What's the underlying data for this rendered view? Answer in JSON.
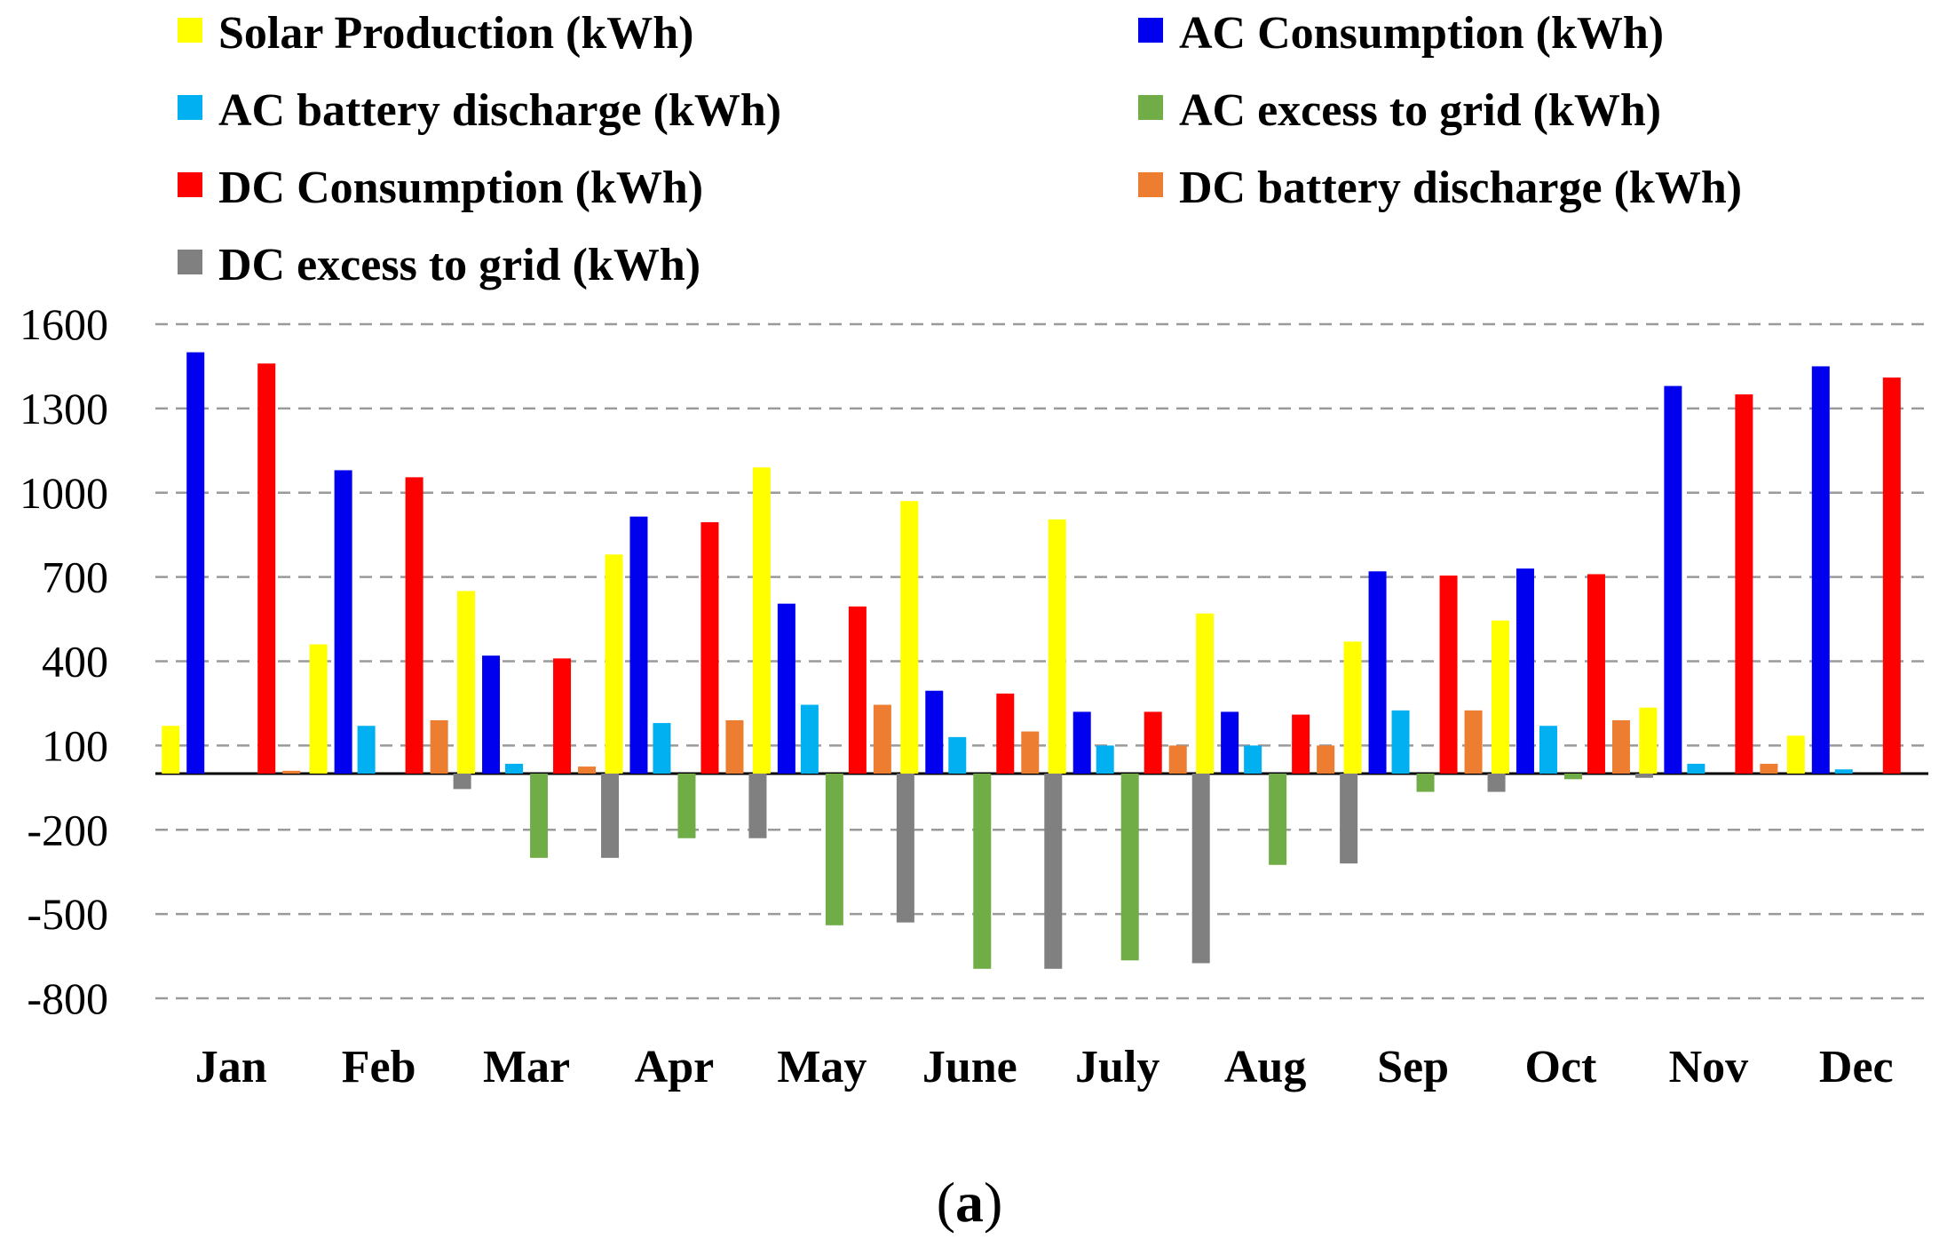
{
  "chart_data": {
    "type": "bar",
    "title": "",
    "xlabel": "",
    "ylabel": "",
    "caption": "(a)",
    "caption_open": "(",
    "caption_letter": "a",
    "caption_close": ")",
    "ylim": [
      -800,
      1600
    ],
    "yticks": [
      1600,
      1300,
      1000,
      700,
      400,
      100,
      -200,
      -500,
      -800
    ],
    "ytick_labels": [
      "1600",
      "1300",
      "1000",
      "700",
      "400",
      "100",
      "-200",
      "-500",
      "-800"
    ],
    "grid": true,
    "legend_position": "top",
    "categories": [
      "Jan",
      "Feb",
      "Mar",
      "Apr",
      "May",
      "June",
      "July",
      "Aug",
      "Sep",
      "Oct",
      "Nov",
      "Dec"
    ],
    "series": [
      {
        "name": "Solar Production (kWh)",
        "color": "#FFFF00",
        "values": [
          170,
          460,
          650,
          780,
          1090,
          970,
          905,
          570,
          470,
          545,
          235,
          135
        ]
      },
      {
        "name": "AC Consumption (kWh)",
        "color": "#0000EE",
        "values": [
          1500,
          1080,
          420,
          915,
          605,
          295,
          220,
          220,
          720,
          730,
          1380,
          1450
        ]
      },
      {
        "name": "AC battery discharge (kWh)",
        "color": "#00B0F0",
        "values": [
          0,
          170,
          35,
          180,
          245,
          130,
          100,
          100,
          225,
          170,
          35,
          15
        ]
      },
      {
        "name": "AC excess to grid (kWh)",
        "color": "#70AD47",
        "values": [
          0,
          0,
          -300,
          -230,
          -540,
          -695,
          -665,
          -325,
          -65,
          -20,
          0,
          0
        ]
      },
      {
        "name": "DC Consumption (kWh)",
        "color": "#FF0000",
        "values": [
          1460,
          1055,
          410,
          895,
          595,
          285,
          220,
          210,
          705,
          710,
          1350,
          1410
        ]
      },
      {
        "name": "DC battery discharge (kWh)",
        "color": "#ED7D31",
        "values": [
          10,
          190,
          25,
          190,
          245,
          150,
          100,
          100,
          225,
          190,
          35,
          0
        ]
      },
      {
        "name": "DC excess to grid (kWh)",
        "color": "#808080",
        "values": [
          0,
          -55,
          -300,
          -230,
          -530,
          -695,
          -675,
          -320,
          -65,
          -15,
          0,
          0
        ]
      }
    ]
  }
}
